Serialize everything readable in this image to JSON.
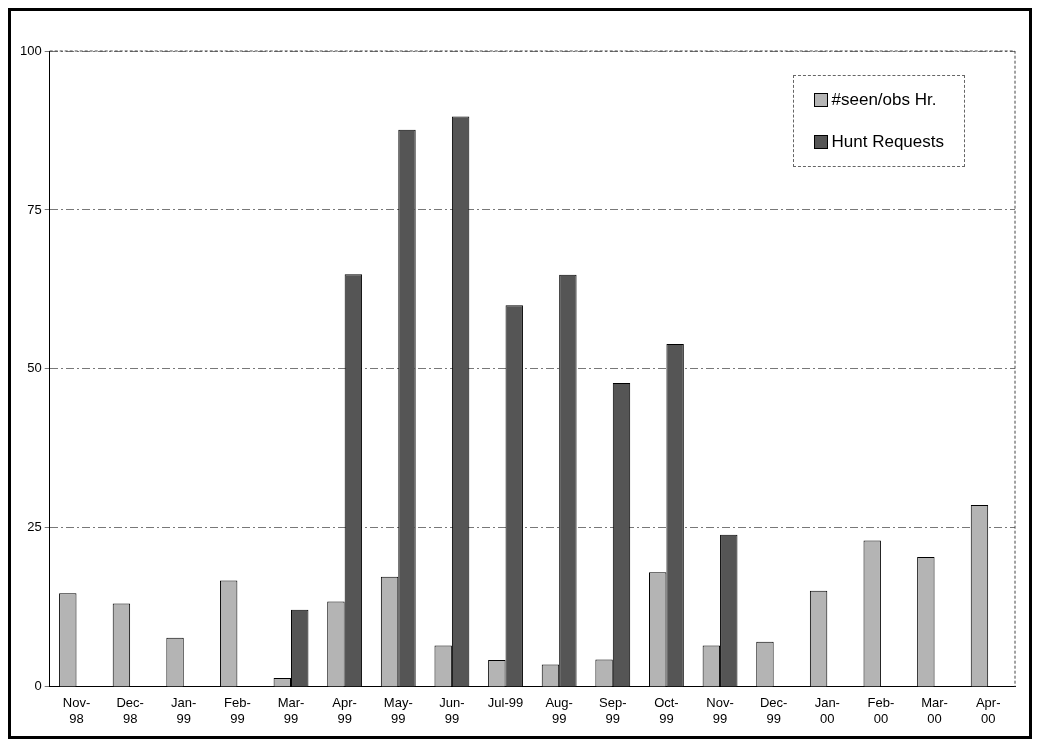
{
  "chart_data": {
    "type": "bar",
    "categories": [
      "Nov-98",
      "Dec-98",
      "Jan-99",
      "Feb-99",
      "Mar-99",
      "Apr-99",
      "May-99",
      "Jun-99",
      "Jul-99",
      "Aug-99",
      "Sep-99",
      "Oct-99",
      "Nov-99",
      "Dec-99",
      "Jan-00",
      "Feb-00",
      "Mar-00",
      "Apr-00"
    ],
    "series": [
      {
        "name": "#seen/obs Hr.",
        "color": "#b4b4b4",
        "values": [
          14.7,
          13.1,
          7.7,
          16.7,
          1.4,
          13.4,
          17.3,
          6.5,
          4.2,
          3.5,
          4.3,
          18,
          6.5,
          7.1,
          15.1,
          23,
          20.4,
          28.6
        ]
      },
      {
        "name": "Hunt Requests",
        "color": "#555555",
        "values": [
          null,
          null,
          null,
          null,
          12.1,
          64.9,
          87.6,
          89.7,
          60,
          64.8,
          47.8,
          53.9,
          23.9,
          null,
          null,
          null,
          null,
          null
        ]
      }
    ],
    "ylim": [
      0,
      100
    ],
    "yticks": [
      0,
      25,
      50,
      75,
      100
    ],
    "grid": "y",
    "legend": "top right"
  }
}
